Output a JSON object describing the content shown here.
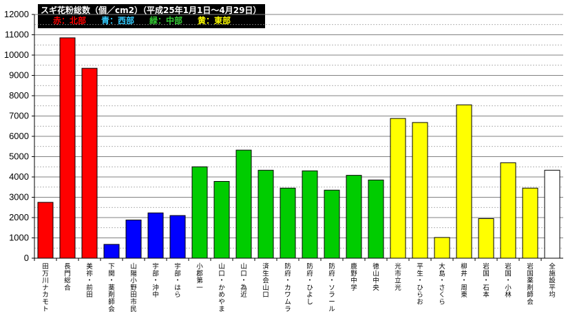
{
  "title": {
    "main": "スギ花粉総数（個／cm2）（平成25年1月1日～4月29日）",
    "legend": [
      {
        "text": "赤：北部",
        "color": "#ff0000"
      },
      {
        "text": "青：西部",
        "color": "#33ccff"
      },
      {
        "text": "緑：中部",
        "color": "#33cc33"
      },
      {
        "text": "黄：東部",
        "color": "#ffff00"
      }
    ]
  },
  "chart_data": {
    "type": "bar",
    "ylim": [
      0,
      12000
    ],
    "yticks": [
      0,
      1000,
      2000,
      3000,
      4000,
      5000,
      6000,
      7000,
      8000,
      9000,
      10000,
      11000,
      12000
    ],
    "grid": "dashed-horizontal",
    "categories": [
      "田万川ナカモト",
      "長門総合",
      "美祢・前田",
      "下関・薬剤師会",
      "山陽小野田市民",
      "宇部・沖中",
      "宇部・はら",
      "小郡第一",
      "山口・かめやま",
      "山口・為近",
      "済生会山口",
      "防府・カワムラ",
      "防府・ひよし",
      "防府・ソラール",
      "鹿野中学",
      "徳山中央",
      "光市立光",
      "平生・ひらお",
      "大島・さくら",
      "柳井・周東",
      "岩国・石本",
      "岩国・小林",
      "岩国薬剤師会",
      "全施設平均"
    ],
    "values": [
      2750,
      10850,
      9350,
      680,
      1880,
      2230,
      2100,
      4500,
      3780,
      5320,
      4330,
      3450,
      4300,
      3350,
      4080,
      3850,
      6880,
      6680,
      1020,
      7550,
      1950,
      4700,
      3450,
      4330
    ],
    "colors": [
      "#ff0000",
      "#ff0000",
      "#ff0000",
      "#0000ff",
      "#0000ff",
      "#0000ff",
      "#0000ff",
      "#00cc00",
      "#00cc00",
      "#00cc00",
      "#00cc00",
      "#00cc00",
      "#00cc00",
      "#00cc00",
      "#00cc00",
      "#00cc00",
      "#ffff00",
      "#ffff00",
      "#ffff00",
      "#ffff00",
      "#ffff00",
      "#ffff00",
      "#ffff00",
      "#ffffff"
    ]
  }
}
